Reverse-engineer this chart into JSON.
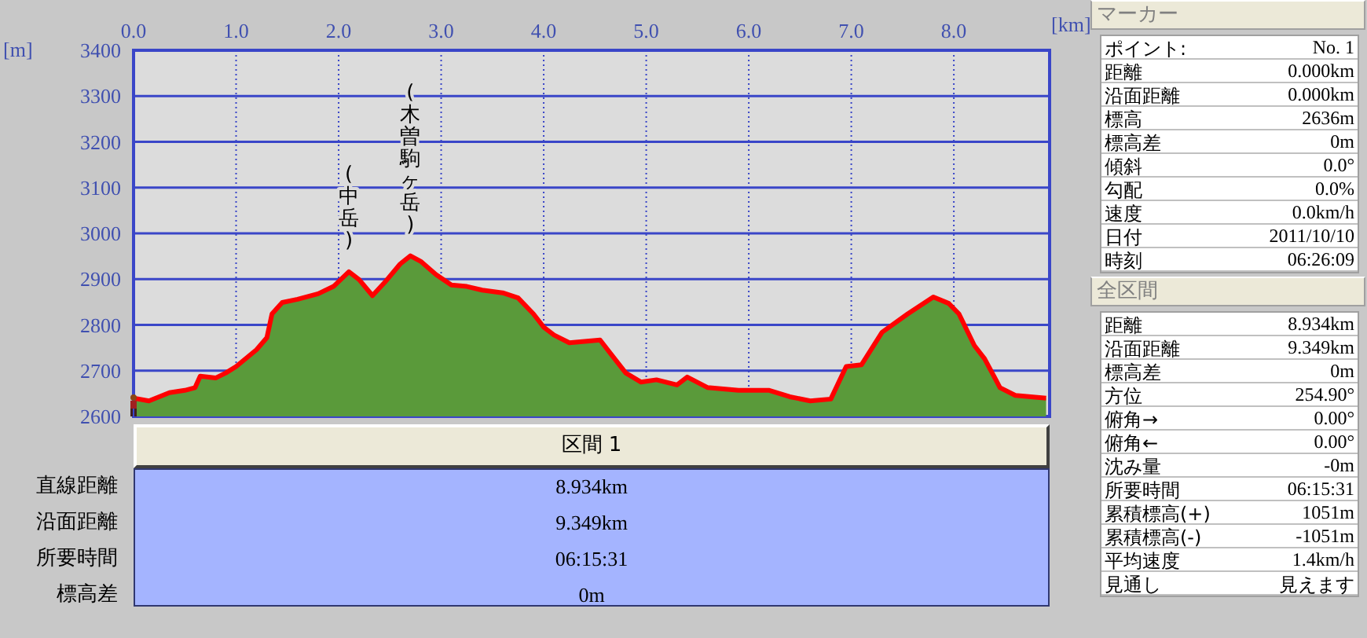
{
  "chart_data": [
    {
      "type": "area",
      "xlabel": "[km]",
      "ylabel": "[m]",
      "xlim": [
        0,
        8.934
      ],
      "ylim": [
        2600,
        3400
      ],
      "xticks": [
        {
          "value": 0,
          "label": "0.0"
        },
        {
          "value": 1,
          "label": "1.0"
        },
        {
          "value": 2,
          "label": "2.0"
        },
        {
          "value": 3,
          "label": "3.0"
        },
        {
          "value": 4,
          "label": "4.0"
        },
        {
          "value": 5,
          "label": "5.0"
        },
        {
          "value": 6,
          "label": "6.0"
        },
        {
          "value": 7,
          "label": "7.0"
        },
        {
          "value": 8,
          "label": "8.0"
        }
      ],
      "yticks": [
        2600,
        2700,
        2800,
        2900,
        3000,
        3100,
        3200,
        3300,
        3400
      ],
      "grid": true,
      "x": [
        0,
        0.15,
        0.35,
        0.5,
        0.6,
        0.65,
        0.8,
        0.9,
        1.0,
        1.2,
        1.3,
        1.35,
        1.45,
        1.6,
        1.8,
        1.95,
        2.1,
        2.2,
        2.33,
        2.45,
        2.6,
        2.7,
        2.8,
        2.95,
        3.1,
        3.25,
        3.4,
        3.6,
        3.75,
        3.9,
        4.0,
        4.1,
        4.25,
        4.4,
        4.55,
        4.65,
        4.8,
        4.95,
        5.1,
        5.3,
        5.4,
        5.6,
        5.9,
        6.2,
        6.4,
        6.6,
        6.8,
        6.95,
        7.1,
        7.3,
        7.55,
        7.8,
        7.95,
        8.05,
        8.2,
        8.3,
        8.45,
        8.6,
        8.9
      ],
      "series": [
        {
          "type": "area",
          "color": "#5a9a3a",
          "values": [
            2640,
            2634,
            2652,
            2657,
            2663,
            2688,
            2684,
            2695,
            2709,
            2746,
            2772,
            2824,
            2849,
            2856,
            2868,
            2884,
            2916,
            2899,
            2864,
            2893,
            2933,
            2951,
            2939,
            2910,
            2887,
            2884,
            2876,
            2870,
            2859,
            2824,
            2795,
            2778,
            2761,
            2764,
            2767,
            2738,
            2695,
            2675,
            2680,
            2669,
            2686,
            2663,
            2657,
            2657,
            2643,
            2634,
            2638,
            2709,
            2713,
            2784,
            2824,
            2861,
            2847,
            2824,
            2755,
            2726,
            2663,
            2646,
            2640
          ]
        },
        {
          "type": "line",
          "color": "#ff0000",
          "values": [
            2640,
            2634,
            2652,
            2657,
            2663,
            2688,
            2684,
            2695,
            2709,
            2746,
            2772,
            2824,
            2849,
            2856,
            2868,
            2884,
            2916,
            2899,
            2864,
            2893,
            2933,
            2951,
            2939,
            2910,
            2887,
            2884,
            2876,
            2870,
            2859,
            2824,
            2795,
            2778,
            2761,
            2764,
            2767,
            2738,
            2695,
            2675,
            2680,
            2669,
            2686,
            2663,
            2657,
            2657,
            2643,
            2634,
            2638,
            2709,
            2713,
            2784,
            2824,
            2861,
            2847,
            2824,
            2755,
            2726,
            2663,
            2646,
            2640
          ]
        }
      ],
      "annotations": [
        {
          "text": "(中岳)",
          "x": 2.1,
          "y": 2916
        },
        {
          "text": "(木曽駒ヶ岳)",
          "x": 2.7,
          "y": 2951
        }
      ]
    },
    {
      "type": "other",
      "title": "区間 1",
      "annotations": [
        "直線距離",
        "8.934km",
        "沿面距離",
        "9.349km",
        "所要時間",
        "06:15:31",
        "標高差",
        "0m"
      ]
    },
    {
      "type": "other",
      "title": "マーカー",
      "annotations": [
        "ポイント:",
        "No. 1",
        "距離",
        "0.000km",
        "沿面距離",
        "0.000km",
        "標高",
        "2636m",
        "標高差",
        "0m",
        "傾斜",
        "0.0°",
        "勾配",
        "0.0%",
        "速度",
        "0.0km/h",
        "日付",
        "2011/10/10",
        "時刻",
        "06:26:09"
      ]
    },
    {
      "type": "other",
      "title": "全区間",
      "annotations": [
        "距離",
        "8.934km",
        "沿面距離",
        "9.349km",
        "標高差",
        "0m",
        "方位",
        "254.90°",
        "俯角→",
        "0.00°",
        "俯角←",
        "0.00°",
        "沈み量",
        "-0m",
        "所要時間",
        "06:15:31",
        "累積標高(+)",
        "1051m",
        "累積標高(-)",
        "-1051m",
        "平均速度",
        "1.4km/h",
        "見通し",
        "見えます"
      ]
    }
  ]
}
